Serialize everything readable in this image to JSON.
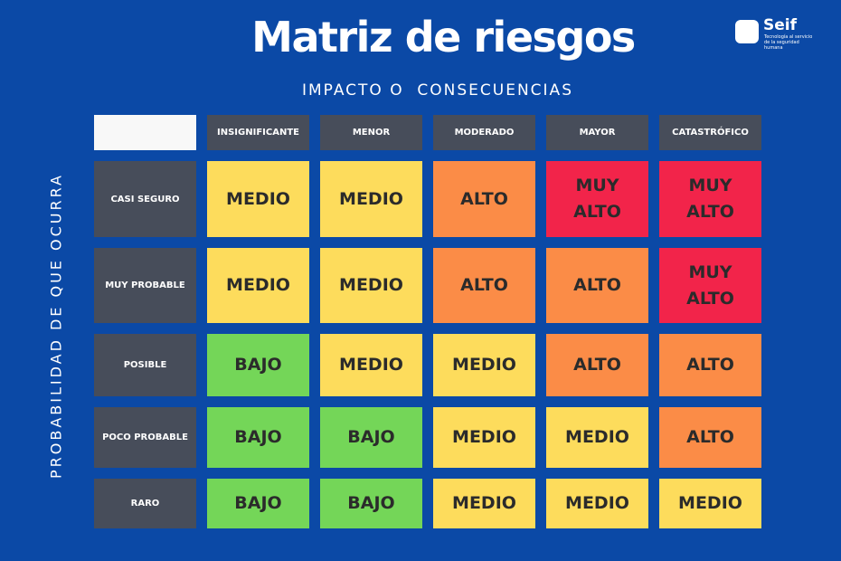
{
  "title": "Matriz de riesgos",
  "subtitle": "IMPACTO O  CONSECUENCIAS",
  "side_label": "PROBABILIDAD DE QUE OCURRA",
  "logo": {
    "name": "Seif",
    "tagline": "Tecnología al servicio de la seguridad humana"
  },
  "table": {
    "columns": [
      "INSIGNIFICANTE",
      "MENOR",
      "MODERADO",
      "MAYOR",
      "CATASTRÓFICO"
    ],
    "rows": [
      {
        "label": "CASI SEGURO",
        "cells": [
          {
            "text": "MEDIO",
            "color": "#fddc5c"
          },
          {
            "text": "MEDIO",
            "color": "#fddc5c"
          },
          {
            "text": "ALTO",
            "color": "#fb8c47"
          },
          {
            "text": "MUY ALTO",
            "color": "#f2244a"
          },
          {
            "text": "MUY ALTO",
            "color": "#f2244a"
          }
        ]
      },
      {
        "label": "MUY PROBABLE",
        "cells": [
          {
            "text": "MEDIO",
            "color": "#fddc5c"
          },
          {
            "text": "MEDIO",
            "color": "#fddc5c"
          },
          {
            "text": "ALTO",
            "color": "#fb8c47"
          },
          {
            "text": "ALTO",
            "color": "#fb8c47"
          },
          {
            "text": "MUY ALTO",
            "color": "#f2244a"
          }
        ]
      },
      {
        "label": "POSIBLE",
        "cells": [
          {
            "text": "BAJO",
            "color": "#74d658"
          },
          {
            "text": "MEDIO",
            "color": "#fddc5c"
          },
          {
            "text": "MEDIO",
            "color": "#fddc5c"
          },
          {
            "text": "ALTO",
            "color": "#fb8c47"
          },
          {
            "text": "ALTO",
            "color": "#fb8c47"
          }
        ]
      },
      {
        "label": "POCO PROBABLE",
        "cells": [
          {
            "text": "BAJO",
            "color": "#74d658"
          },
          {
            "text": "BAJO",
            "color": "#74d658"
          },
          {
            "text": "MEDIO",
            "color": "#fddc5c"
          },
          {
            "text": "MEDIO",
            "color": "#fddc5c"
          },
          {
            "text": "ALTO",
            "color": "#fb8c47"
          }
        ]
      },
      {
        "label": "RARO",
        "cells": [
          {
            "text": "BAJO",
            "color": "#74d658"
          },
          {
            "text": "BAJO",
            "color": "#74d658"
          },
          {
            "text": "MEDIO",
            "color": "#fddc5c"
          },
          {
            "text": "MEDIO",
            "color": "#fddc5c"
          },
          {
            "text": "MEDIO",
            "color": "#fddc5c"
          }
        ]
      }
    ]
  }
}
